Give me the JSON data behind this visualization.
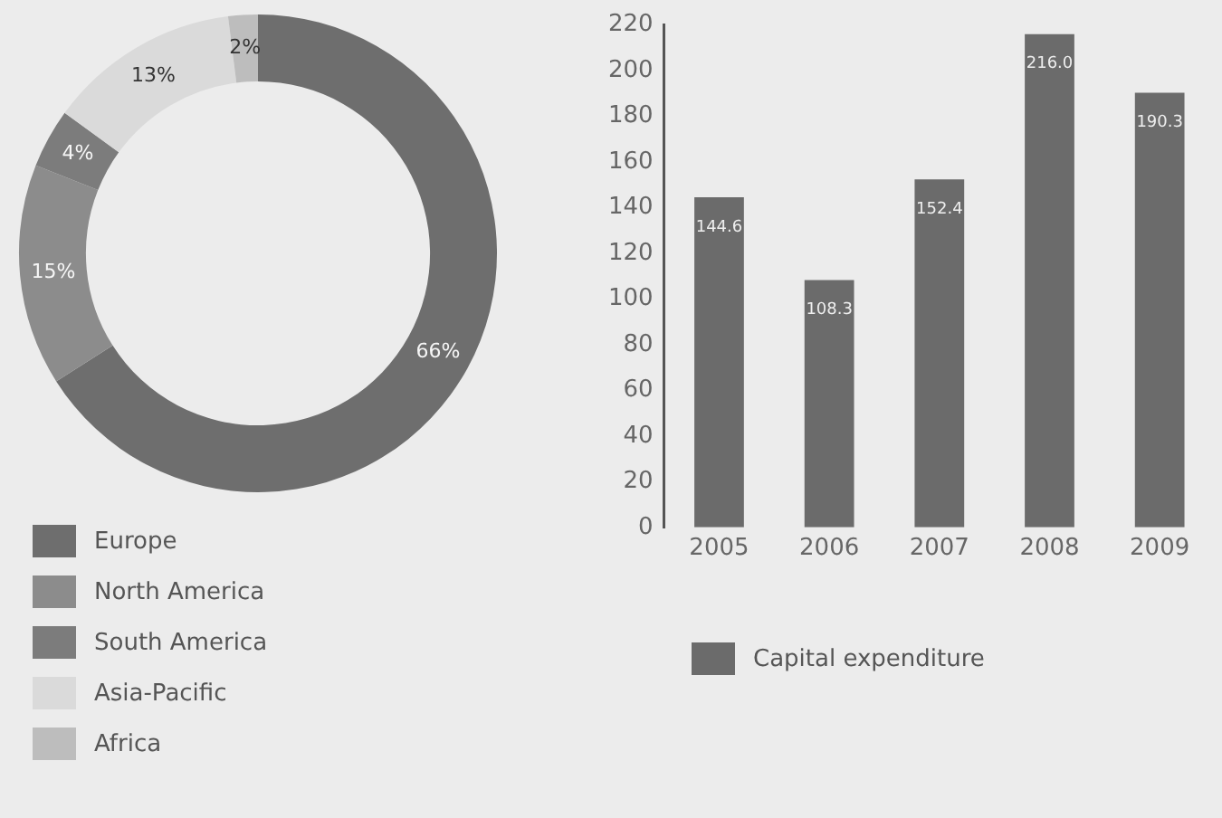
{
  "chart_data": [
    {
      "type": "donut",
      "categories": [
        "Europe",
        "North America",
        "South America",
        "Asia-Pacific",
        "Africa"
      ],
      "values": [
        66,
        15,
        4,
        13,
        2
      ],
      "colors": [
        "#6e6e6e",
        "#8c8c8c",
        "#7c7c7c",
        "#dadada",
        "#bdbdbd"
      ],
      "value_labels": [
        "66%",
        "15%",
        "4%",
        "13%",
        "2%"
      ],
      "legend": "bottom left"
    },
    {
      "type": "bar",
      "categories": [
        "2005",
        "2006",
        "2007",
        "2008",
        "2009"
      ],
      "series": [
        {
          "name": "Capital expenditure",
          "color": "#6b6b6b",
          "values": [
            144.6,
            108.3,
            152.4,
            216,
            190.3
          ],
          "value_labels": [
            "144.6",
            "108.3",
            "152.4",
            "216.0",
            "190.3"
          ]
        }
      ],
      "ylim": [
        0,
        220
      ],
      "yticks": [
        0,
        20,
        40,
        60,
        80,
        100,
        120,
        140,
        160,
        180,
        200,
        220
      ],
      "grid": false,
      "legend": "bottom left"
    }
  ]
}
